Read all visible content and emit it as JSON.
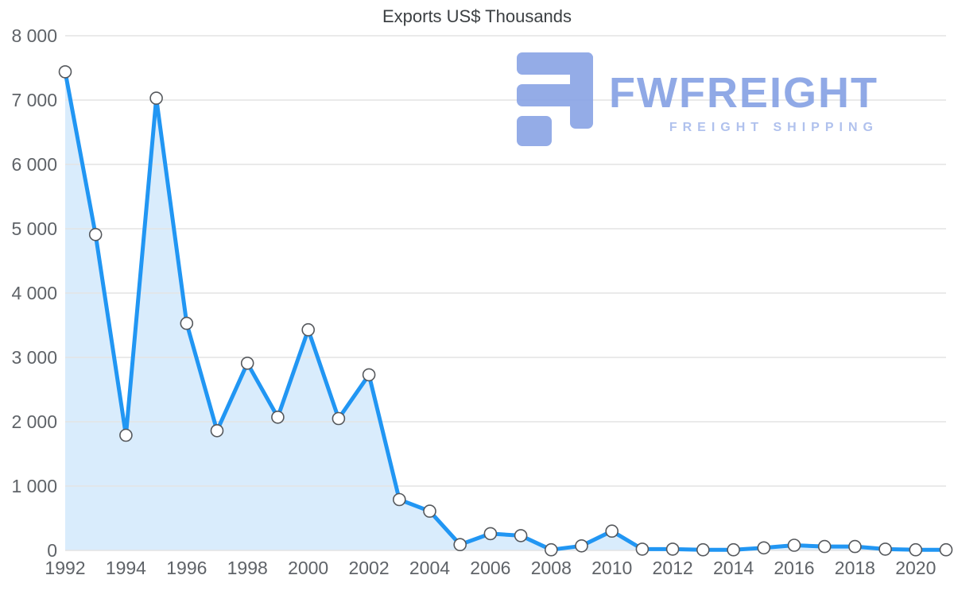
{
  "chart_data": {
    "type": "area",
    "title": "Exports US$ Thousands",
    "x": [
      1992,
      1993,
      1994,
      1995,
      1996,
      1997,
      1998,
      1999,
      2000,
      2001,
      2002,
      2003,
      2004,
      2005,
      2006,
      2007,
      2008,
      2009,
      2010,
      2011,
      2012,
      2013,
      2014,
      2015,
      2016,
      2017,
      2018,
      2019,
      2020,
      2021
    ],
    "values": [
      7440,
      4910,
      1790,
      7030,
      3530,
      1860,
      2910,
      2070,
      3430,
      2050,
      2730,
      790,
      610,
      90,
      260,
      230,
      10,
      70,
      300,
      20,
      20,
      10,
      10,
      40,
      80,
      60,
      60,
      20,
      10,
      10
    ],
    "xlabel": "",
    "ylabel": "",
    "ylim": [
      0,
      8000
    ],
    "grid": true,
    "legend": "none",
    "y_ticks": [
      {
        "value": 0,
        "label": "0"
      },
      {
        "value": 1000,
        "label": "1 000"
      },
      {
        "value": 2000,
        "label": "2 000"
      },
      {
        "value": 3000,
        "label": "3 000"
      },
      {
        "value": 4000,
        "label": "4 000"
      },
      {
        "value": 5000,
        "label": "5 000"
      },
      {
        "value": 6000,
        "label": "6 000"
      },
      {
        "value": 7000,
        "label": "7 000"
      },
      {
        "value": 8000,
        "label": "8 000"
      }
    ],
    "x_tick_years": [
      1992,
      1994,
      1996,
      1998,
      2000,
      2002,
      2004,
      2006,
      2008,
      2010,
      2012,
      2014,
      2016,
      2018,
      2020
    ],
    "colors": {
      "line": "#2196f3",
      "fill": "#d9ecfc",
      "marker_fill": "#ffffff",
      "marker_stroke": "#55585c",
      "grid": "#e4e4e4",
      "axis_text": "#5f6368",
      "title_text": "#3c4043"
    }
  },
  "logo": {
    "text": "FWFREIGHT",
    "subtext": "FREIGHT SHIPPING",
    "color": "#87a2e4"
  }
}
